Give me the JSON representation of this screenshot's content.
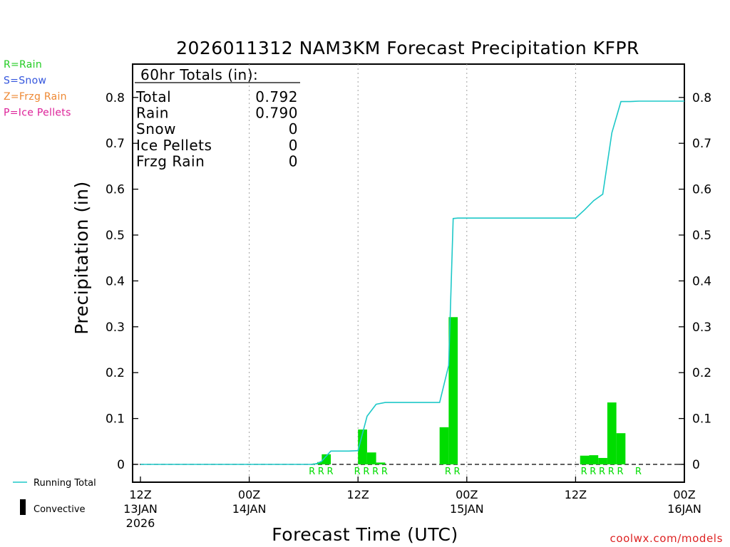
{
  "chart_data": {
    "type": "bar",
    "title": "2026011312 NAM3KM Forecast Precipitation KFPR",
    "xlabel": "Forecast Time (UTC)",
    "ylabel": "Precipitation (in)",
    "ylim": [
      -0.04,
      0.88
    ],
    "y_ticks": [
      "0",
      "0.1",
      "0.2",
      "0.3",
      "0.4",
      "0.5",
      "0.6",
      "0.7",
      "0.8"
    ],
    "x_unit": "forecast hour",
    "xlim": [
      0,
      60
    ],
    "x_ticks": [
      {
        "hour": 0,
        "lines": [
          "12Z",
          "13JAN",
          "2026"
        ]
      },
      {
        "hour": 12,
        "lines": [
          "00Z",
          "14JAN"
        ]
      },
      {
        "hour": 24,
        "lines": [
          "12Z"
        ]
      },
      {
        "hour": 36,
        "lines": [
          "00Z",
          "15JAN"
        ]
      },
      {
        "hour": 48,
        "lines": [
          "12Z"
        ]
      },
      {
        "hour": 60,
        "lines": [
          "00Z",
          "16JAN"
        ]
      }
    ],
    "grid": "vertical dotted at 00Z/12Z",
    "series": [
      {
        "name": "Running Total",
        "kind": "line",
        "color": "#1ec8c8",
        "x": [
          0,
          19,
          19.5,
          20,
          21,
          22,
          23,
          24,
          25,
          26,
          27,
          28,
          29,
          30,
          31,
          32,
          33,
          34,
          34.5,
          35,
          36,
          37,
          38,
          39,
          40,
          41,
          42,
          43,
          44,
          45,
          46,
          47,
          48,
          49,
          50,
          51,
          52,
          53,
          54,
          55,
          56,
          57,
          58,
          59,
          60
        ],
        "values": [
          0,
          0,
          0.002,
          0.007,
          0.029,
          0.029,
          0.029,
          0.03,
          0.105,
          0.131,
          0.135,
          0.135,
          0.135,
          0.135,
          0.135,
          0.135,
          0.135,
          0.216,
          0.536,
          0.537,
          0.537,
          0.537,
          0.537,
          0.537,
          0.537,
          0.537,
          0.537,
          0.537,
          0.537,
          0.537,
          0.537,
          0.537,
          0.537,
          0.555,
          0.575,
          0.589,
          0.723,
          0.791,
          0.791,
          0.792,
          0.792,
          0.792,
          0.792,
          0.792,
          0.792
        ]
      },
      {
        "name": "Convective",
        "kind": "legend-only",
        "color": "#000000"
      }
    ],
    "bars": {
      "color": "#00dd00",
      "width_hours": 1,
      "items": [
        {
          "start": 19,
          "value": 0.002
        },
        {
          "start": 19.5,
          "value": 0.005
        },
        {
          "start": 20,
          "value": 0.022
        },
        {
          "start": 24,
          "value": 0.076
        },
        {
          "start": 25,
          "value": 0.026
        },
        {
          "start": 26,
          "value": 0.004
        },
        {
          "start": 33,
          "value": 0.081
        },
        {
          "start": 34,
          "value": 0.321
        },
        {
          "start": 48.5,
          "value": 0.019
        },
        {
          "start": 49.5,
          "value": 0.02
        },
        {
          "start": 50.5,
          "value": 0.014
        },
        {
          "start": 51.5,
          "value": 0.135
        },
        {
          "start": 52.5,
          "value": 0.068
        }
      ]
    },
    "ptype_markers": {
      "color": "#00dd00",
      "items": [
        {
          "x": 19,
          "label": "R"
        },
        {
          "x": 20,
          "label": "R"
        },
        {
          "x": 21,
          "label": "R"
        },
        {
          "x": 24,
          "label": "R"
        },
        {
          "x": 25,
          "label": "R"
        },
        {
          "x": 26,
          "label": "R"
        },
        {
          "x": 27,
          "label": "R"
        },
        {
          "x": 34,
          "label": "R"
        },
        {
          "x": 35,
          "label": "R"
        },
        {
          "x": 49,
          "label": "R"
        },
        {
          "x": 50,
          "label": "R"
        },
        {
          "x": 51,
          "label": "R"
        },
        {
          "x": 52,
          "label": "R"
        },
        {
          "x": 53,
          "label": "R"
        },
        {
          "x": 55,
          "label": "R"
        }
      ]
    },
    "totals_box": {
      "header": "60hr Totals (in):",
      "rows": [
        {
          "label": "Total",
          "value": "0.792"
        },
        {
          "label": "Rain",
          "value": "0.790"
        },
        {
          "label": "Snow",
          "value": "0"
        },
        {
          "label": "Ice Pellets",
          "value": "0"
        },
        {
          "label": "Frzg Rain",
          "value": "0"
        }
      ]
    },
    "ptype_legend": [
      {
        "text": "R=Rain",
        "color": "#22cc22"
      },
      {
        "text": "S=Snow",
        "color": "#3355dd"
      },
      {
        "text": "Z=Frzg Rain",
        "color": "#ee8833"
      },
      {
        "text": "P=Ice Pellets",
        "color": "#dd2299"
      }
    ],
    "zero_line": "dashed"
  },
  "credit": {
    "text": "coolwx.com/models",
    "color": "#dd2222"
  }
}
